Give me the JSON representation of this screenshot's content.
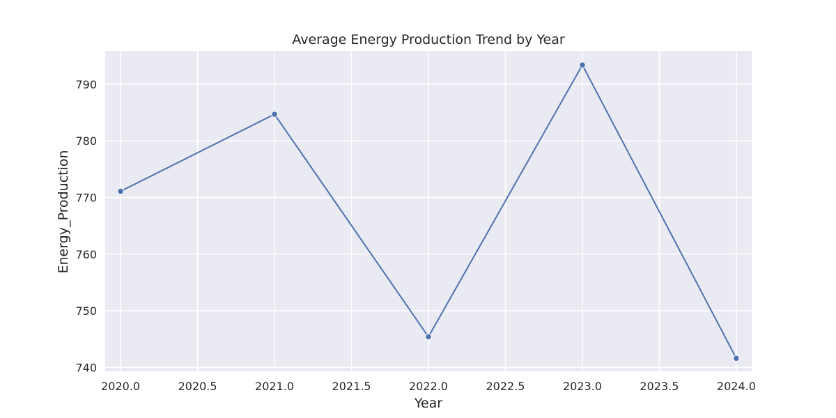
{
  "chart_data": {
    "type": "line",
    "title": "Average Energy Production Trend by Year",
    "xlabel": "Year",
    "ylabel": "Energy_Production",
    "x": [
      2020,
      2021,
      2022,
      2023,
      2024
    ],
    "series": [
      {
        "values": [
          771.1,
          784.7,
          745.4,
          793.4,
          741.6
        ]
      }
    ],
    "xlim": [
      2019.9,
      2024.1
    ],
    "ylim": [
      739.3,
      795.9
    ],
    "x_ticks": [
      "2020.0",
      "2020.5",
      "2021.0",
      "2021.5",
      "2022.0",
      "2022.5",
      "2023.0",
      "2023.5",
      "2024.0"
    ],
    "x_tick_values": [
      2020.0,
      2020.5,
      2021.0,
      2021.5,
      2022.0,
      2022.5,
      2023.0,
      2023.5,
      2024.0
    ],
    "y_ticks": [
      "740",
      "750",
      "760",
      "770",
      "780",
      "790"
    ],
    "y_tick_values": [
      740,
      750,
      760,
      770,
      780,
      790
    ],
    "grid": true,
    "colors": {
      "background": "#eaeaf2",
      "line": "#4c72b0",
      "grid": "#ffffff"
    }
  }
}
